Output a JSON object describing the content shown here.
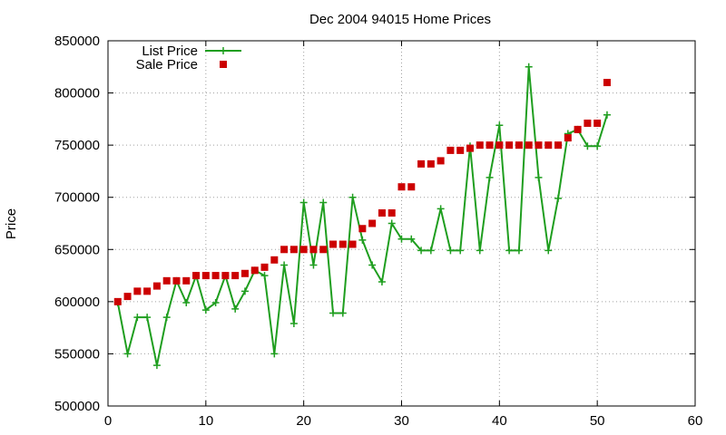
{
  "chart_data": {
    "type": "line",
    "title": "Dec 2004 94015 Home Prices",
    "xlabel": "",
    "ylabel": "Price",
    "xlim": [
      0,
      60
    ],
    "ylim": [
      500000,
      850000
    ],
    "x_ticks": [
      0,
      10,
      20,
      30,
      40,
      50,
      60
    ],
    "y_ticks": [
      500000,
      550000,
      600000,
      650000,
      700000,
      750000,
      800000,
      850000
    ],
    "grid": true,
    "legend_position": "top-left",
    "series": [
      {
        "name": "List Price",
        "style": "line-points",
        "marker": "plus",
        "color": "#1f9e1f",
        "x": [
          1,
          2,
          3,
          4,
          5,
          6,
          7,
          8,
          9,
          10,
          11,
          12,
          13,
          14,
          15,
          16,
          17,
          18,
          19,
          20,
          21,
          22,
          23,
          24,
          25,
          26,
          27,
          28,
          29,
          30,
          31,
          32,
          33,
          34,
          35,
          36,
          37,
          38,
          39,
          40,
          41,
          42,
          43,
          44,
          45,
          46,
          47,
          48,
          49,
          50,
          51
        ],
        "y": [
          599000,
          550000,
          585000,
          585000,
          539000,
          585000,
          620000,
          599000,
          625000,
          592000,
          599000,
          625000,
          593000,
          610000,
          630000,
          625000,
          550000,
          635000,
          579000,
          695000,
          635000,
          695000,
          589000,
          589000,
          700000,
          659000,
          635000,
          619000,
          675000,
          660000,
          660000,
          649000,
          649000,
          689000,
          649000,
          649000,
          749000,
          649000,
          719000,
          769000,
          649000,
          649000,
          825000,
          719000,
          649000,
          699000,
          761000,
          765000,
          749000,
          749000,
          779000
        ]
      },
      {
        "name": "Sale Price",
        "style": "points",
        "marker": "square",
        "color": "#cc0000",
        "x": [
          1,
          2,
          3,
          4,
          5,
          6,
          7,
          8,
          9,
          10,
          11,
          12,
          13,
          14,
          15,
          16,
          17,
          18,
          19,
          20,
          21,
          22,
          23,
          24,
          25,
          26,
          27,
          28,
          29,
          30,
          31,
          32,
          33,
          34,
          35,
          36,
          37,
          38,
          39,
          40,
          41,
          42,
          43,
          44,
          45,
          46,
          47,
          48,
          49,
          50,
          51
        ],
        "y": [
          600000,
          605000,
          610000,
          610000,
          615000,
          620000,
          620000,
          620000,
          625000,
          625000,
          625000,
          625000,
          625000,
          627000,
          630000,
          633000,
          640000,
          650000,
          650000,
          650000,
          650000,
          650000,
          655000,
          655000,
          655000,
          670000,
          675000,
          685000,
          685000,
          710000,
          710000,
          732000,
          732000,
          735000,
          745000,
          745000,
          747000,
          750000,
          750000,
          750000,
          750000,
          750000,
          750000,
          750000,
          750000,
          750000,
          757000,
          765000,
          771000,
          771000,
          810000
        ]
      }
    ]
  }
}
